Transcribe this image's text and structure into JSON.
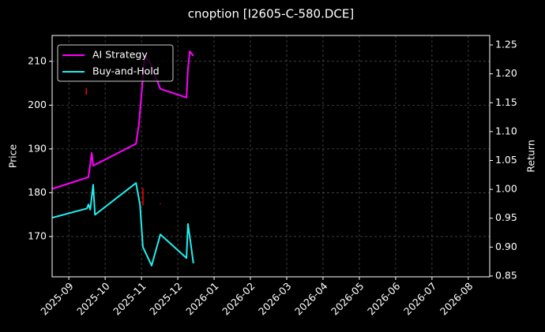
{
  "chart_data": {
    "type": "line",
    "title": "cnoption [I2605-C-580.DCE]",
    "ylabel": "Price",
    "y2label": "Return",
    "grid": true,
    "legend": "upper left",
    "xlim": [
      -0.46,
      11.59
    ],
    "xticks": [
      {
        "value": 0,
        "label": "2025-09"
      },
      {
        "value": 1,
        "label": "2025-10"
      },
      {
        "value": 2,
        "label": "2025-11"
      },
      {
        "value": 3,
        "label": "2025-12"
      },
      {
        "value": 4,
        "label": "2026-01"
      },
      {
        "value": 5,
        "label": "2026-02"
      },
      {
        "value": 6,
        "label": "2026-03"
      },
      {
        "value": 7,
        "label": "2026-04"
      },
      {
        "value": 8,
        "label": "2026-05"
      },
      {
        "value": 9,
        "label": "2026-06"
      },
      {
        "value": 10,
        "label": "2026-07"
      },
      {
        "value": 11,
        "label": "2026-08"
      }
    ],
    "ylim": [
      160.8,
      215.9
    ],
    "yticks": [
      170,
      180,
      190,
      200,
      210
    ],
    "y2lim": [
      0.8486,
      1.2664
    ],
    "y2ticks": [
      0.85,
      {
        "value": 0.9,
        "label": "0.90"
      },
      0.95,
      {
        "value": 1.0,
        "label": "1.00"
      },
      1.05,
      {
        "value": 1.1,
        "label": "1.10"
      },
      1.15,
      {
        "value": 1.2,
        "label": "1.20"
      },
      1.25
    ],
    "price": {
      "color": "#ff0000",
      "x": [
        0.48,
        2.04,
        2.52
      ],
      "low": [
        202.4,
        177.1,
        177.4
      ],
      "high": [
        203.9,
        181.1,
        177.6
      ]
    },
    "series": [
      {
        "name": "AI Strategy",
        "color": "#ff00ff",
        "axis": "y2",
        "x": [
          -0.45,
          0.54,
          0.63,
          0.67,
          1.85,
          1.93,
          2.02,
          2.09,
          2.24,
          2.52,
          3.24,
          3.28,
          3.33,
          3.43
        ],
        "values": [
          1.001,
          1.021,
          1.063,
          1.041,
          1.079,
          1.113,
          1.178,
          1.232,
          1.219,
          1.174,
          1.159,
          1.208,
          1.239,
          1.231
        ]
      },
      {
        "name": "Buy-and-Hold",
        "color": "#22eeee",
        "axis": "y2",
        "x": [
          -0.45,
          0.5,
          0.54,
          0.59,
          0.67,
          0.72,
          1.85,
          1.96,
          2.04,
          2.28,
          2.52,
          3.24,
          3.28,
          3.35,
          3.43
        ],
        "values": [
          0.951,
          0.967,
          0.974,
          0.965,
          1.008,
          0.956,
          1.011,
          0.973,
          0.9,
          0.868,
          0.922,
          0.881,
          0.94,
          0.909,
          0.872
        ]
      }
    ]
  }
}
